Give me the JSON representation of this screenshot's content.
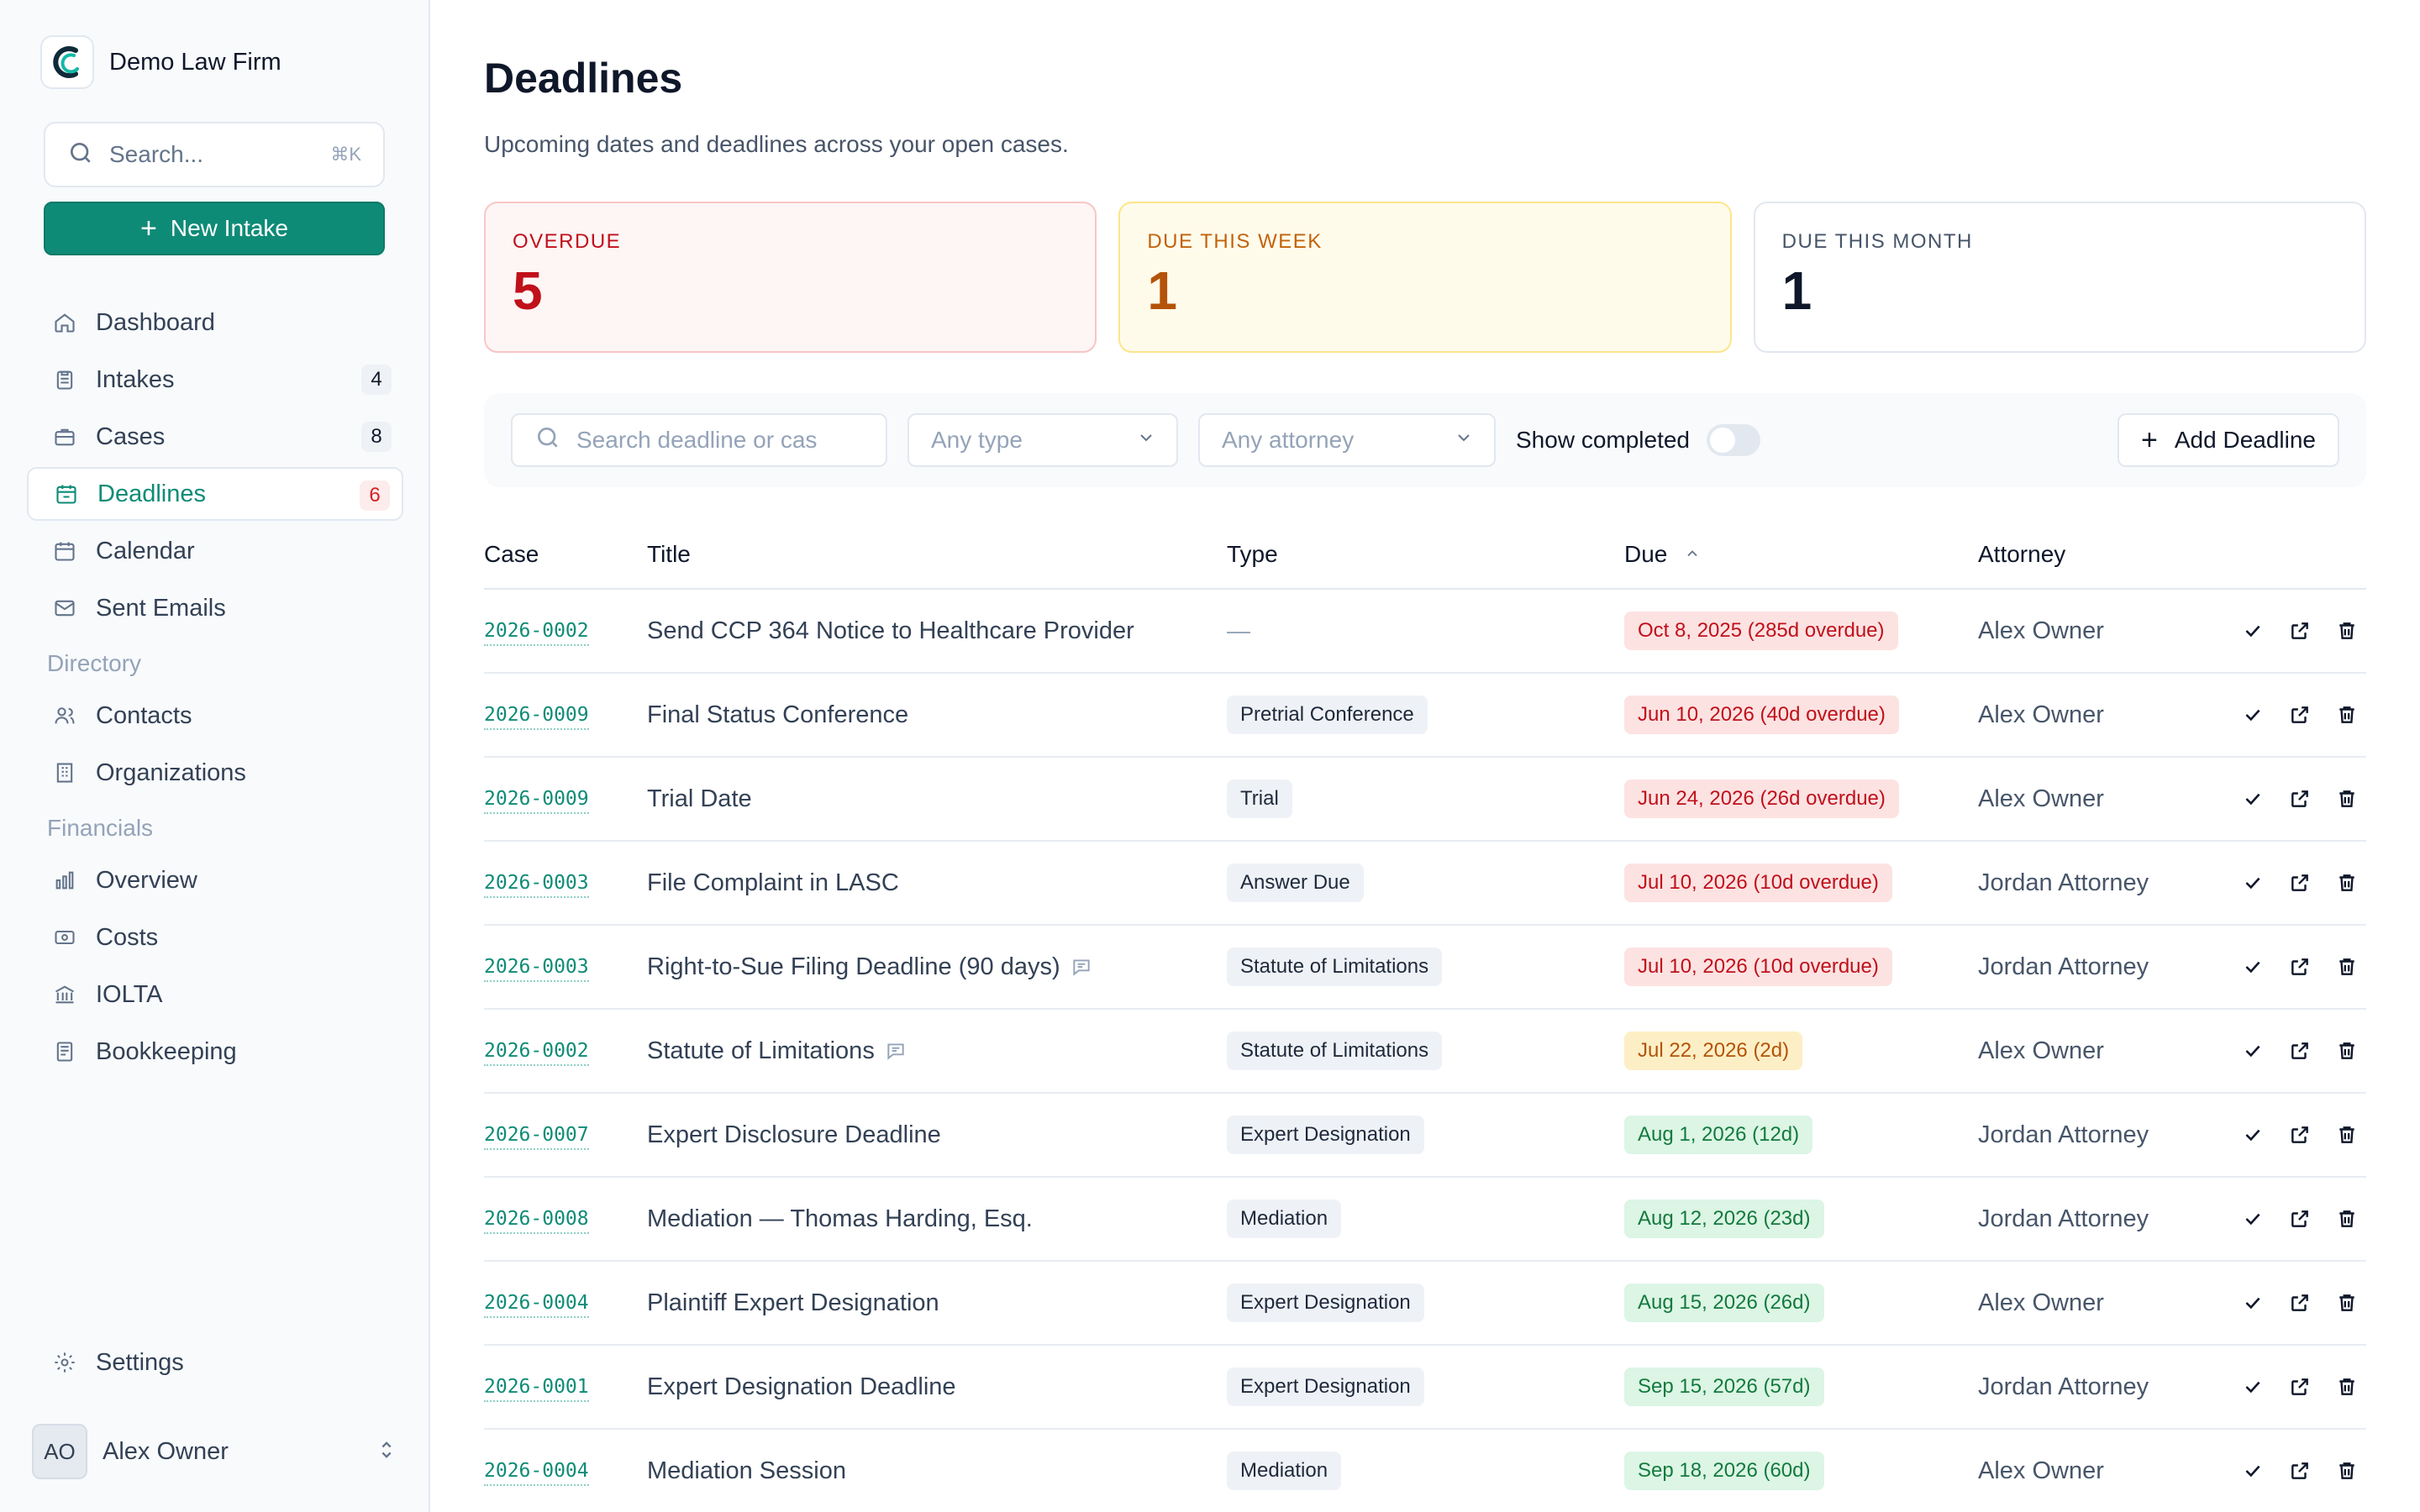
{
  "brand": {
    "name": "Demo Law Firm"
  },
  "sidebar": {
    "search": {
      "placeholder": "Search...",
      "shortcut": "⌘K"
    },
    "new_intake_label": "New Intake",
    "items": [
      {
        "label": "Dashboard",
        "icon": "home-icon"
      },
      {
        "label": "Intakes",
        "icon": "clipboard-icon",
        "count": "4"
      },
      {
        "label": "Cases",
        "icon": "briefcase-icon",
        "count": "8"
      },
      {
        "label": "Deadlines",
        "icon": "calendar-check-icon",
        "count": "6",
        "active": true
      },
      {
        "label": "Calendar",
        "icon": "calendar-icon"
      },
      {
        "label": "Sent Emails",
        "icon": "mail-icon"
      }
    ],
    "directory_heading": "Directory",
    "directory_items": [
      {
        "label": "Contacts",
        "icon": "users-icon"
      },
      {
        "label": "Organizations",
        "icon": "building-icon"
      }
    ],
    "financials_heading": "Financials",
    "financial_items": [
      {
        "label": "Overview",
        "icon": "bar-chart-icon"
      },
      {
        "label": "Costs",
        "icon": "banknote-icon"
      },
      {
        "label": "IOLTA",
        "icon": "bank-icon"
      },
      {
        "label": "Bookkeeping",
        "icon": "ledger-icon"
      }
    ],
    "settings_label": "Settings",
    "user": {
      "initials": "AO",
      "name": "Alex Owner"
    }
  },
  "page": {
    "title": "Deadlines",
    "subtitle": "Upcoming dates and deadlines across your open cases."
  },
  "summary": {
    "overdue": {
      "label": "OVERDUE",
      "value": "5"
    },
    "week": {
      "label": "DUE THIS WEEK",
      "value": "1"
    },
    "month": {
      "label": "DUE THIS MONTH",
      "value": "1"
    }
  },
  "filters": {
    "search_placeholder": "Search deadline or cas",
    "type_selected": "Any type",
    "attorney_selected": "Any attorney",
    "show_completed_label": "Show completed",
    "show_completed": false,
    "add_label": "Add Deadline"
  },
  "table": {
    "columns": {
      "case": "Case",
      "title": "Title",
      "type": "Type",
      "due": "Due",
      "attorney": "Attorney"
    },
    "rows": [
      {
        "case": "2026-0002",
        "title": "Send CCP 364 Notice to Healthcare Provider",
        "type": "—",
        "due": "Oct 8, 2025 (285d overdue)",
        "status": "red",
        "attorney": "Alex Owner"
      },
      {
        "case": "2026-0009",
        "title": "Final Status Conference",
        "type": "Pretrial Conference",
        "due": "Jun 10, 2026 (40d overdue)",
        "status": "red",
        "attorney": "Alex Owner"
      },
      {
        "case": "2026-0009",
        "title": "Trial Date",
        "type": "Trial",
        "due": "Jun 24, 2026 (26d overdue)",
        "status": "red",
        "attorney": "Alex Owner"
      },
      {
        "case": "2026-0003",
        "title": "File Complaint in LASC",
        "type": "Answer Due",
        "due": "Jul 10, 2026 (10d overdue)",
        "status": "red",
        "attorney": "Jordan Attorney"
      },
      {
        "case": "2026-0003",
        "title": "Right-to-Sue Filing Deadline (90 days)",
        "has_note": true,
        "type": "Statute of Limitations",
        "due": "Jul 10, 2026 (10d overdue)",
        "status": "red",
        "attorney": "Jordan Attorney"
      },
      {
        "case": "2026-0002",
        "title": "Statute of Limitations",
        "has_note": true,
        "type": "Statute of Limitations",
        "due": "Jul 22, 2026 (2d)",
        "status": "amber",
        "attorney": "Alex Owner"
      },
      {
        "case": "2026-0007",
        "title": "Expert Disclosure Deadline",
        "type": "Expert Designation",
        "due": "Aug 1, 2026 (12d)",
        "status": "green",
        "attorney": "Jordan Attorney"
      },
      {
        "case": "2026-0008",
        "title": "Mediation — Thomas Harding, Esq.",
        "type": "Mediation",
        "due": "Aug 12, 2026 (23d)",
        "status": "green",
        "attorney": "Jordan Attorney"
      },
      {
        "case": "2026-0004",
        "title": "Plaintiff Expert Designation",
        "type": "Expert Designation",
        "due": "Aug 15, 2026 (26d)",
        "status": "green",
        "attorney": "Alex Owner"
      },
      {
        "case": "2026-0001",
        "title": "Expert Designation Deadline",
        "type": "Expert Designation",
        "due": "Sep 15, 2026 (57d)",
        "status": "green",
        "attorney": "Jordan Attorney"
      },
      {
        "case": "2026-0004",
        "title": "Mediation Session",
        "type": "Mediation",
        "due": "Sep 18, 2026 (60d)",
        "status": "green",
        "attorney": "Alex Owner"
      }
    ]
  },
  "colors": {
    "accent": "#0e8b77",
    "overdue": "#c0101a",
    "due_soon": "#b45309",
    "on_track": "#137a3d"
  }
}
